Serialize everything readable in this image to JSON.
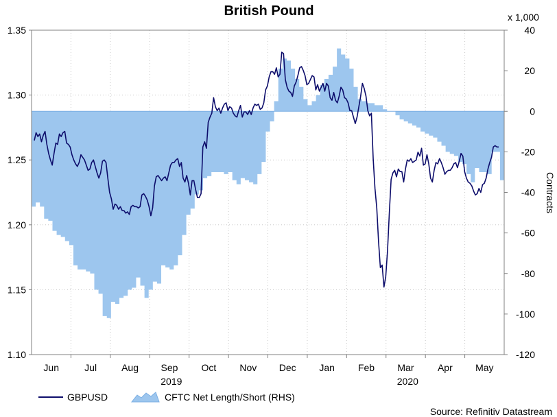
{
  "chart_data": {
    "type": "line",
    "title": "British Pound",
    "left_ylim": [
      1.1,
      1.35
    ],
    "left_ticks": [
      "1.10",
      "1.15",
      "1.20",
      "1.25",
      "1.30",
      "1.35"
    ],
    "right_ylim": [
      -120,
      40
    ],
    "right_ticks": [
      "-120",
      "-100",
      "-80",
      "-60",
      "-40",
      "-20",
      "0",
      "20",
      "40"
    ],
    "right_multiplier": "x 1,000",
    "right_ylabel": "Contracts",
    "months": [
      "Jun",
      "Jul",
      "Aug",
      "Sep",
      "Oct",
      "Nov",
      "Dec",
      "Jan",
      "Feb",
      "Mar",
      "Apr",
      "May"
    ],
    "years": [
      {
        "label": "2019",
        "month_index": 3
      },
      {
        "label": "2020",
        "month_index": 9
      }
    ],
    "grid": true,
    "legend_position": "bottom-left",
    "source": "Source: Refinitiv Datastream",
    "series": [
      {
        "name": "GBPUSD",
        "axis": "left",
        "kind": "line",
        "color": "#0d0d6b",
        "values": [
          1.265,
          1.271,
          1.268,
          1.27,
          1.264,
          1.269,
          1.272,
          1.262,
          1.255,
          1.25,
          1.246,
          1.255,
          1.263,
          1.262,
          1.27,
          1.268,
          1.271,
          1.272,
          1.263,
          1.262,
          1.26,
          1.254,
          1.25,
          1.247,
          1.245,
          1.248,
          1.254,
          1.252,
          1.25,
          1.246,
          1.242,
          1.243,
          1.248,
          1.25,
          1.245,
          1.24,
          1.236,
          1.24,
          1.249,
          1.25,
          1.248,
          1.236,
          1.225,
          1.22,
          1.212,
          1.216,
          1.215,
          1.212,
          1.214,
          1.211,
          1.211,
          1.209,
          1.21,
          1.208,
          1.214,
          1.215,
          1.214,
          1.214,
          1.213,
          1.214,
          1.223,
          1.224,
          1.222,
          1.219,
          1.214,
          1.207,
          1.213,
          1.23,
          1.237,
          1.238,
          1.236,
          1.234,
          1.236,
          1.237,
          1.234,
          1.24,
          1.246,
          1.248,
          1.248,
          1.25,
          1.251,
          1.245,
          1.248,
          1.236,
          1.233,
          1.238,
          1.232,
          1.223,
          1.234,
          1.234,
          1.227,
          1.221,
          1.221,
          1.224,
          1.26,
          1.264,
          1.259,
          1.279,
          1.283,
          1.286,
          1.298,
          1.291,
          1.288,
          1.29,
          1.286,
          1.29,
          1.293,
          1.294,
          1.288,
          1.291,
          1.29,
          1.286,
          1.284,
          1.283,
          1.288,
          1.292,
          1.283,
          1.287,
          1.287,
          1.285,
          1.288,
          1.285,
          1.29,
          1.293,
          1.292,
          1.293,
          1.289,
          1.29,
          1.294,
          1.304,
          1.307,
          1.314,
          1.318,
          1.318,
          1.316,
          1.321,
          1.314,
          1.316,
          1.333,
          1.332,
          1.312,
          1.306,
          1.303,
          1.302,
          1.299,
          1.307,
          1.31,
          1.315,
          1.321,
          1.322,
          1.319,
          1.315,
          1.308,
          1.309,
          1.312,
          1.315,
          1.314,
          1.304,
          1.308,
          1.303,
          1.306,
          1.309,
          1.303,
          1.309,
          1.307,
          1.298,
          1.296,
          1.302,
          1.296,
          1.294,
          1.299,
          1.306,
          1.304,
          1.298,
          1.297,
          1.294,
          1.288,
          1.288,
          1.283,
          1.278,
          1.283,
          1.291,
          1.299,
          1.309,
          1.305,
          1.299,
          1.288,
          1.284,
          1.286,
          1.251,
          1.228,
          1.213,
          1.187,
          1.167,
          1.169,
          1.152,
          1.16,
          1.18,
          1.209,
          1.235,
          1.24,
          1.242,
          1.237,
          1.243,
          1.241,
          1.241,
          1.233,
          1.243,
          1.25,
          1.249,
          1.251,
          1.248,
          1.249,
          1.25,
          1.256,
          1.253,
          1.259,
          1.246,
          1.247,
          1.254,
          1.247,
          1.236,
          1.233,
          1.242,
          1.248,
          1.247,
          1.251,
          1.248,
          1.244,
          1.239,
          1.241,
          1.242,
          1.242,
          1.244,
          1.247,
          1.248,
          1.244,
          1.249,
          1.255,
          1.253,
          1.241,
          1.236,
          1.233,
          1.232,
          1.23,
          1.226,
          1.223,
          1.224,
          1.228,
          1.225,
          1.231,
          1.232,
          1.236,
          1.243,
          1.248,
          1.252,
          1.26,
          1.261,
          1.26,
          1.26
        ]
      },
      {
        "name": "CFTC Net Length/Short (RHS)",
        "axis": "right",
        "kind": "area",
        "color": "#9dc6ee",
        "edge_color": "#7aaee3",
        "values": [
          -47,
          -45,
          -47,
          -53,
          -54,
          -59,
          -61,
          -62,
          -64,
          -66,
          -76,
          -78,
          -78,
          -79,
          -80,
          -88,
          -90,
          -101,
          -102,
          -94,
          -95,
          -92,
          -91,
          -88,
          -87,
          -82,
          -86,
          -92,
          -88,
          -84,
          -85,
          -76,
          -77,
          -78,
          -76,
          -71,
          -61,
          -51,
          -48,
          -41,
          -39,
          -33,
          -32,
          -30,
          -30,
          -30,
          -31,
          -30,
          -34,
          -36,
          -33,
          -34,
          -35,
          -36,
          -31,
          -25,
          -10,
          -5,
          5,
          21,
          26,
          25,
          21,
          16,
          12,
          6,
          3,
          5,
          8,
          13,
          16,
          18,
          22,
          31,
          28,
          26,
          21,
          12,
          6,
          5,
          4,
          4,
          3,
          3,
          1,
          0,
          0,
          -2,
          -4,
          -5,
          -6,
          -7,
          -8,
          -10,
          -11,
          -12,
          -13,
          -15,
          -17,
          -20,
          -21,
          -22,
          -25,
          -26,
          -31,
          -35,
          -28,
          -30,
          -30,
          -31,
          -20,
          -20,
          -34
        ]
      }
    ]
  }
}
